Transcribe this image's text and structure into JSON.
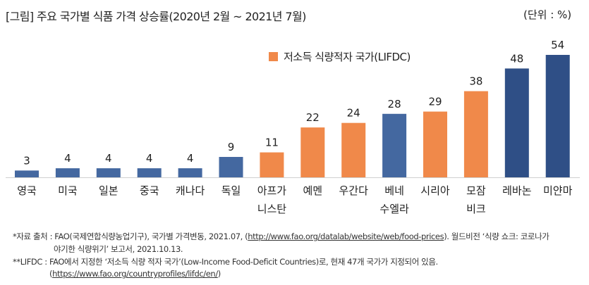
{
  "title": "[그림] 주요 국가별 식품 가격 상승률(2020년 2월 ~ 2021년 7월)",
  "unit": "(단위 : %)",
  "legend": {
    "label": "저소득 식량적자 국가(LIFDC)",
    "color": "#f0894a"
  },
  "colors": {
    "default": "#4468a0",
    "lifdc": "#f0894a",
    "highlight": "#2f4f86"
  },
  "chart_data": {
    "type": "bar",
    "categories": [
      [
        "영국"
      ],
      [
        "미국"
      ],
      [
        "일본"
      ],
      [
        "중국"
      ],
      [
        "캐나다"
      ],
      [
        "독일"
      ],
      [
        "아프가",
        "니스탄"
      ],
      [
        "예멘"
      ],
      [
        "우간다"
      ],
      [
        "베네",
        "수엘라"
      ],
      [
        "시리아"
      ],
      [
        "모잠",
        "비크"
      ],
      [
        "레바논"
      ],
      [
        "미얀마"
      ]
    ],
    "values": [
      3,
      4,
      4,
      4,
      4,
      9,
      11,
      22,
      24,
      28,
      29,
      38,
      48,
      54
    ],
    "groups": [
      "default",
      "default",
      "default",
      "default",
      "default",
      "default",
      "lifdc",
      "lifdc",
      "lifdc",
      "default",
      "lifdc",
      "lifdc",
      "highlight",
      "highlight"
    ],
    "ylim": [
      0,
      54
    ],
    "grid": false,
    "legend_position": "top-center"
  },
  "footnotes": {
    "line1_prefix": "*자료 출처 : FAO(국제연합식량농업기구), 국가별 가격변동, 2021.07, (",
    "line1_link": "http://www.fao.org/datalab/website/web/food-prices",
    "line1_suffix": "). 월드비전 ‘식량 쇼크: 코로나가",
    "line2": "야기한 식량위기’ 보고서, 2021.10.13.",
    "line3": "**LIFDC : FAO에서 지정한 ‘저소득 식량 적자 국가’(Low-Income Food-Deficit Countries)로, 현재 47개 국가가 지정되어 있음.",
    "line4_prefix": "(",
    "line4_link": "https://www.fao.org/countryprofiles/lifdc/en/",
    "line4_suffix": ")"
  }
}
